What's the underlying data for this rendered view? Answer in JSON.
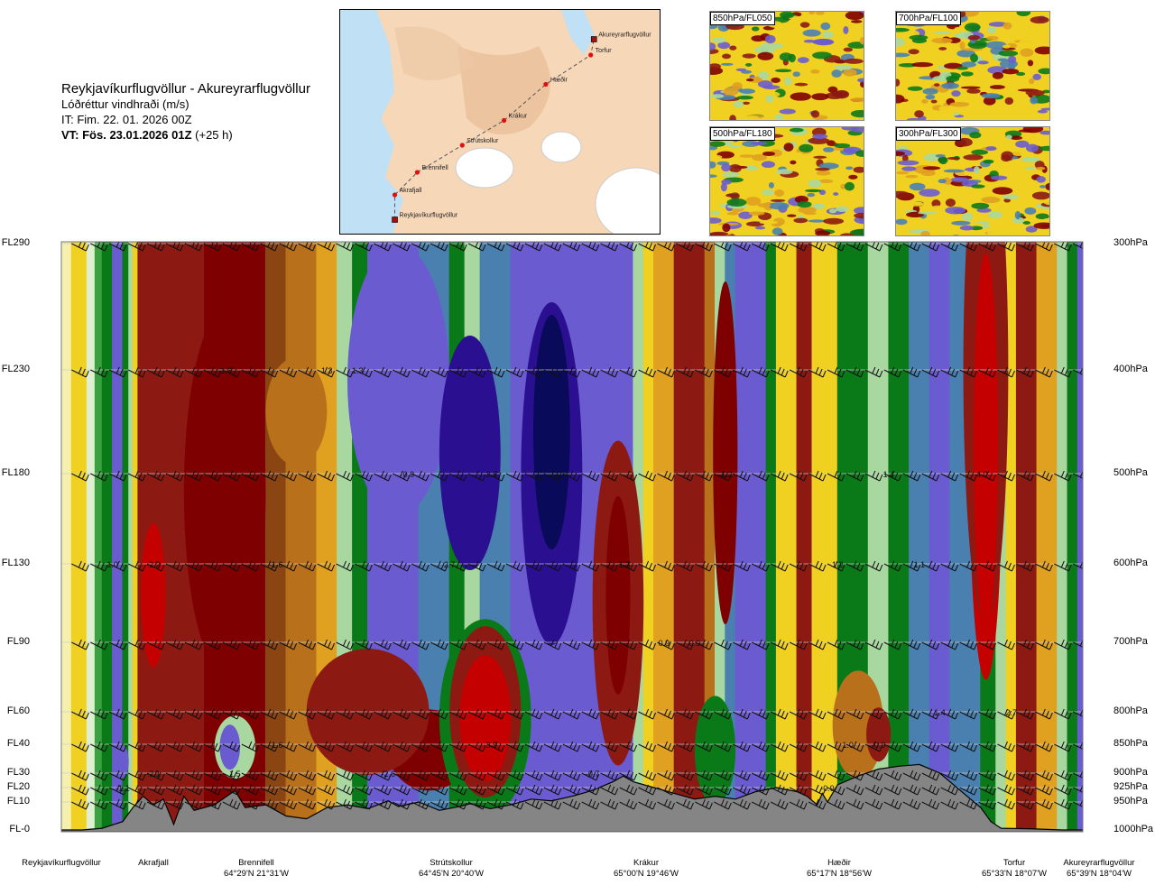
{
  "title": {
    "route": "Reykjavíkurflugvöllur - Akureyrarflugvöllur",
    "variable": "Lóðréttur vindhraði (m/s)",
    "init_time": "IT: Fim. 22. 01. 2026 00Z",
    "valid_prefix": "VT: Fös. 23.01.2026 01Z",
    "valid_suffix": "(+25 h)"
  },
  "map": {
    "waypoints": [
      {
        "name": "Reykjavíkurflugvöllur",
        "lon": 0.17,
        "lat": 0.93
      },
      {
        "name": "Akrafjall",
        "lon": 0.17,
        "lat": 0.82
      },
      {
        "name": "Brennifell",
        "lon": 0.24,
        "lat": 0.72
      },
      {
        "name": "Strútskollur",
        "lon": 0.38,
        "lat": 0.6
      },
      {
        "name": "Krákur",
        "lon": 0.51,
        "lat": 0.49
      },
      {
        "name": "Hæðir",
        "lon": 0.64,
        "lat": 0.33
      },
      {
        "name": "Torfur",
        "lon": 0.78,
        "lat": 0.2
      },
      {
        "name": "Akureyrarflugvöllur",
        "lon": 0.79,
        "lat": 0.13
      }
    ]
  },
  "thumbnails": [
    {
      "label": "850hPa/FL050"
    },
    {
      "label": "700hPa/FL100"
    },
    {
      "label": "500hPa/FL180"
    },
    {
      "label": "300hPa/FL300"
    }
  ],
  "chart_data": {
    "type": "heatmap",
    "y_levels_left": [
      "FL290",
      "FL230",
      "FL180",
      "FL130",
      "FL90",
      "FL60",
      "FL40",
      "FL30",
      "FL20",
      "FL10",
      "FL-0"
    ],
    "y_levels_right": [
      "300hPa",
      "400hPa",
      "500hPa",
      "600hPa",
      "700hPa",
      "800hPa",
      "850hPa",
      "900hPa",
      "925hPa",
      "950hPa",
      "1000hPa"
    ],
    "pressure_levels": [
      300,
      400,
      500,
      600,
      700,
      800,
      850,
      900,
      925,
      950,
      1000
    ],
    "x_locations": [
      {
        "name": "Reykjavíkurflugvöllur",
        "coord": ""
      },
      {
        "name": "Akrafjall",
        "coord": ""
      },
      {
        "name": "Brennifell",
        "coord": "64°29'N 21°31'W"
      },
      {
        "name": "Strútskollur",
        "coord": "64°45'N 20°40'W"
      },
      {
        "name": "Krákur",
        "coord": "65°00'N 19°46'W"
      },
      {
        "name": "Hæðir",
        "coord": "65°17'N 18°56'W"
      },
      {
        "name": "Torfur",
        "coord": "65°33'N 18°07'W"
      },
      {
        "name": "Akureyrarflugvöllur",
        "coord": "65°39'N 18°04'W"
      }
    ],
    "value_labels": [
      {
        "text": "-1.6",
        "x": 0.16,
        "p": 400
      },
      {
        "text": "1.3",
        "x": 0.26,
        "p": 400
      },
      {
        "text": "1.3",
        "x": 0.29,
        "p": 400
      },
      {
        "text": "0.9",
        "x": 0.34,
        "p": 500
      },
      {
        "text": "-2.8",
        "x": 0.42,
        "p": 500
      },
      {
        "text": "-2.4",
        "x": 0.49,
        "p": 500
      },
      {
        "text": "-1.2",
        "x": 0.65,
        "p": 500
      },
      {
        "text": "1.4",
        "x": 0.81,
        "p": 500
      },
      {
        "text": "-4.0",
        "x": 0.9,
        "p": 500
      },
      {
        "text": "1.0",
        "x": 0.05,
        "p": 600
      },
      {
        "text": "-2.2",
        "x": 0.09,
        "p": 600
      },
      {
        "text": "-1.6",
        "x": 0.21,
        "p": 600
      },
      {
        "text": "2.7",
        "x": 0.38,
        "p": 600
      },
      {
        "text": "-1.3",
        "x": 0.55,
        "p": 600
      },
      {
        "text": "1.2",
        "x": 0.76,
        "p": 600
      },
      {
        "text": "1.1",
        "x": 0.84,
        "p": 600
      },
      {
        "text": "0.9",
        "x": 0.59,
        "p": 700
      },
      {
        "text": "0.9",
        "x": 0.62,
        "p": 700
      },
      {
        "text": "1.4",
        "x": 0.86,
        "p": 800
      },
      {
        "text": "2.7",
        "x": 0.93,
        "p": 800
      },
      {
        "text": "-1.6",
        "x": 0.21,
        "p": 850
      },
      {
        "text": "-3.9",
        "x": 0.42,
        "p": 850
      },
      {
        "text": "1.0",
        "x": 0.77,
        "p": 850
      },
      {
        "text": "-0.9",
        "x": 0.8,
        "p": 850
      },
      {
        "text": "-2.1",
        "x": 0.09,
        "p": 900
      },
      {
        "text": "1.5",
        "x": 0.17,
        "p": 900
      },
      {
        "text": "-2.6",
        "x": 0.32,
        "p": 900
      },
      {
        "text": "-0.7",
        "x": 0.52,
        "p": 900
      },
      {
        "text": "-1.1",
        "x": 0.06,
        "p": 925
      },
      {
        "text": "-0.9",
        "x": 0.75,
        "p": 925
      }
    ],
    "terrain_profile": [
      [
        0.0,
        1000
      ],
      [
        0.02,
        1000
      ],
      [
        0.04,
        997
      ],
      [
        0.06,
        985
      ],
      [
        0.07,
        960
      ],
      [
        0.08,
        940
      ],
      [
        0.09,
        955
      ],
      [
        0.1,
        945
      ],
      [
        0.11,
        990
      ],
      [
        0.12,
        940
      ],
      [
        0.13,
        965
      ],
      [
        0.15,
        955
      ],
      [
        0.17,
        930
      ],
      [
        0.18,
        960
      ],
      [
        0.2,
        955
      ],
      [
        0.22,
        975
      ],
      [
        0.24,
        980
      ],
      [
        0.26,
        960
      ],
      [
        0.28,
        955
      ],
      [
        0.3,
        962
      ],
      [
        0.32,
        948
      ],
      [
        0.33,
        958
      ],
      [
        0.35,
        950
      ],
      [
        0.37,
        965
      ],
      [
        0.39,
        958
      ],
      [
        0.4,
        953
      ],
      [
        0.42,
        962
      ],
      [
        0.44,
        955
      ],
      [
        0.46,
        945
      ],
      [
        0.48,
        948
      ],
      [
        0.5,
        940
      ],
      [
        0.52,
        930
      ],
      [
        0.54,
        915
      ],
      [
        0.55,
        905
      ],
      [
        0.56,
        915
      ],
      [
        0.58,
        925
      ],
      [
        0.6,
        935
      ],
      [
        0.62,
        945
      ],
      [
        0.64,
        940
      ],
      [
        0.66,
        945
      ],
      [
        0.68,
        932
      ],
      [
        0.7,
        925
      ],
      [
        0.72,
        932
      ],
      [
        0.73,
        940
      ],
      [
        0.74,
        955
      ],
      [
        0.745,
        935
      ],
      [
        0.75,
        950
      ],
      [
        0.76,
        920
      ],
      [
        0.78,
        905
      ],
      [
        0.8,
        893
      ],
      [
        0.82,
        888
      ],
      [
        0.84,
        885
      ],
      [
        0.86,
        900
      ],
      [
        0.88,
        930
      ],
      [
        0.9,
        960
      ],
      [
        0.91,
        985
      ],
      [
        0.92,
        997
      ],
      [
        0.95,
        998
      ],
      [
        0.98,
        1000
      ],
      [
        1.0,
        1000
      ]
    ],
    "colors": {
      "strong_down": "#7f0000",
      "down_3": "#c40000",
      "down_2": "#8c1a12",
      "down_1": "#8b4513",
      "down_05": "#b8701a",
      "down_02": "#e0a020",
      "down_01": "#f0d020",
      "near_zero": "#f5f0b0",
      "up_01": "#dff0d0",
      "up_02": "#a8d8a0",
      "up_05": "#3aa040",
      "up_1": "#0a7a18",
      "up_15": "#4a80b0",
      "up_2": "#6a5cd0",
      "up_3": "#2a1090",
      "up_4": "#0a0a5a",
      "terrain": "#858585"
    }
  }
}
